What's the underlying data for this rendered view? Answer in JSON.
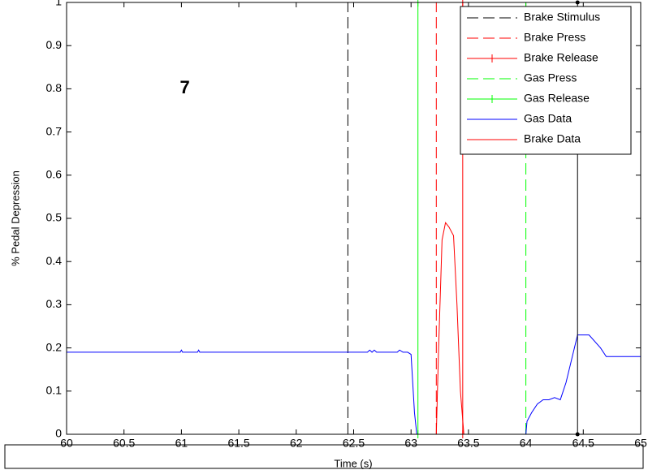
{
  "chart_data": {
    "type": "line",
    "xlabel": "Time (s)",
    "ylabel": "% Pedal Depression",
    "annotation": {
      "text": "7",
      "x": 61.03,
      "y": 0.8
    },
    "xlim": [
      60,
      65
    ],
    "ylim": [
      0,
      1
    ],
    "xticks": [
      60,
      60.5,
      61,
      61.5,
      62,
      62.5,
      63,
      63.5,
      64,
      64.5,
      65
    ],
    "yticks": [
      0,
      0.1,
      0.2,
      0.3,
      0.4,
      0.5,
      0.6,
      0.7,
      0.8,
      0.9,
      1
    ],
    "legend": "upper right",
    "series": [
      {
        "name": "Brake Stimulus",
        "color": "#000000",
        "dash": "dashed",
        "x": [
          62.45,
          62.45
        ],
        "values": [
          0,
          1
        ]
      },
      {
        "name": "Brake Press",
        "color": "#ff0000",
        "dash": "dashed",
        "x": [
          63.22,
          63.22
        ],
        "values": [
          0,
          1
        ]
      },
      {
        "name": "Brake Release",
        "color": "#ff0000",
        "dash": "solid",
        "marker": "+",
        "x": [
          63.45,
          63.45
        ],
        "values": [
          0,
          1
        ]
      },
      {
        "name": "Gas Press",
        "color": "#00ff00",
        "dash": "dashed",
        "x": [
          64.0,
          64.0
        ],
        "values": [
          0,
          1
        ]
      },
      {
        "name": "Gas Release",
        "color": "#00ff00",
        "dash": "solid",
        "marker": "+",
        "x": [
          63.06,
          63.06
        ],
        "values": [
          0,
          1
        ]
      },
      {
        "name": "Gas Data",
        "color": "#0000ff",
        "dash": "solid",
        "x": [
          60,
          60.99,
          61,
          61.01,
          61.14,
          61.15,
          61.16,
          62.62,
          62.64,
          62.66,
          62.68,
          62.7,
          62.72,
          62.88,
          62.9,
          62.93,
          62.97,
          63.0,
          63.03,
          63.05,
          64.0,
          64.01,
          64.05,
          64.1,
          64.15,
          64.2,
          64.25,
          64.3,
          64.35,
          64.45,
          64.55,
          64.65,
          64.7,
          65
        ],
        "values": [
          0.19,
          0.19,
          0.195,
          0.19,
          0.19,
          0.195,
          0.19,
          0.19,
          0.195,
          0.19,
          0.195,
          0.19,
          0.19,
          0.19,
          0.195,
          0.19,
          0.19,
          0.185,
          0.05,
          0,
          0,
          0.03,
          0.05,
          0.07,
          0.08,
          0.08,
          0.085,
          0.08,
          0.12,
          0.23,
          0.23,
          0.2,
          0.18,
          0.18
        ]
      },
      {
        "name": "Brake Data",
        "color": "#ff0000",
        "dash": "solid",
        "x": [
          60,
          63.22,
          63.24,
          63.27,
          63.3,
          63.33,
          63.37,
          63.4,
          63.43,
          63.46,
          65
        ],
        "values": [
          0,
          0,
          0.2,
          0.45,
          0.49,
          0.48,
          0.46,
          0.3,
          0.1,
          0,
          0
        ]
      },
      {
        "color": "#000000",
        "dash": "solid",
        "marker": ".",
        "x": [
          64.45,
          64.45
        ],
        "values": [
          0,
          1
        ]
      }
    ]
  }
}
